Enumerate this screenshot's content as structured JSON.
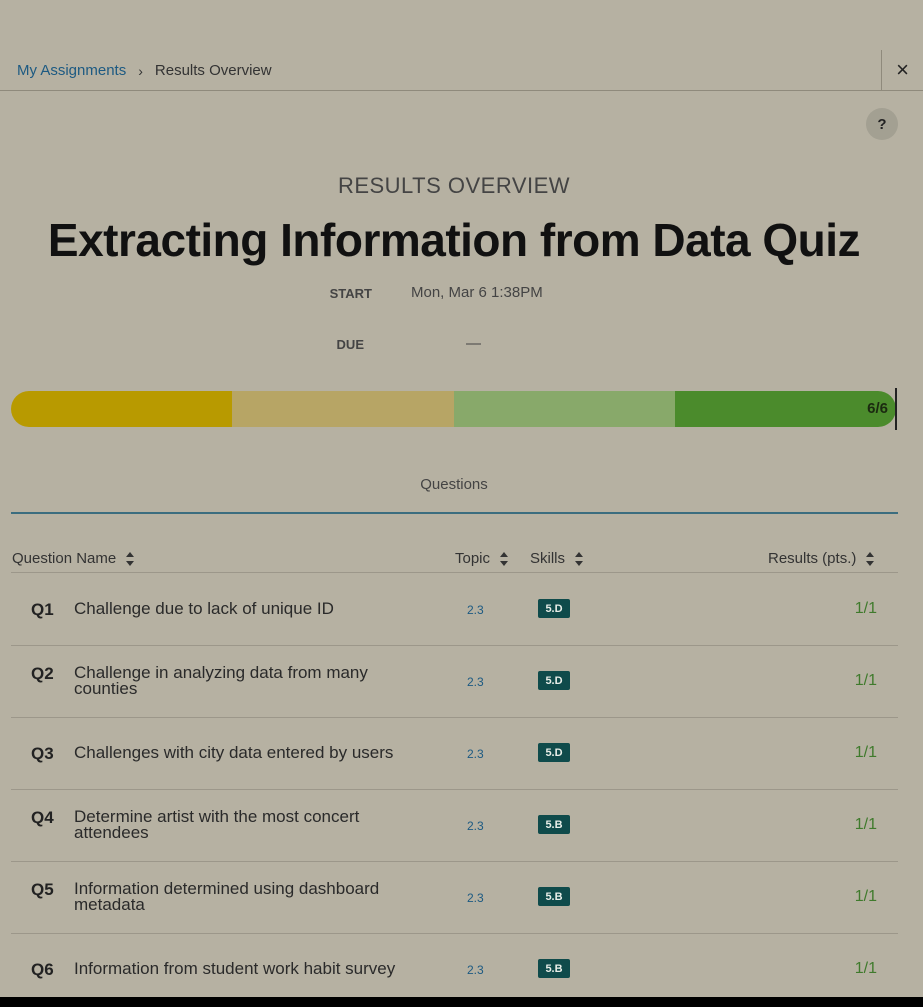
{
  "breadcrumb": {
    "parent": "My Assignments",
    "separator": "›",
    "current": "Results Overview"
  },
  "close_icon": "×",
  "help_label": "?",
  "header": {
    "eyebrow": "RESULTS OVERVIEW",
    "title": "Extracting Information from Data Quiz"
  },
  "meta": {
    "start_label": "START",
    "start_value": "Mon, Mar 6 1:38PM",
    "due_label": "DUE",
    "due_value": "—"
  },
  "progress": {
    "label": "6/6",
    "correct": 6,
    "total": 6,
    "segment_colors": [
      "#b89a00",
      "#b7a565",
      "#88a96a",
      "#4b8b2c"
    ]
  },
  "tabs": {
    "questions": "Questions"
  },
  "table": {
    "headers": {
      "name": "Question Name",
      "topic": "Topic",
      "skills": "Skills",
      "results": "Results (pts.)"
    },
    "rows": [
      {
        "num": "Q1",
        "name": "Challenge due to lack of unique ID",
        "topic": "2.3",
        "skill": "5.D",
        "score": "1/1"
      },
      {
        "num": "Q2",
        "name": "Challenge in analyzing data from many counties",
        "topic": "2.3",
        "skill": "5.D",
        "score": "1/1"
      },
      {
        "num": "Q3",
        "name": "Challenges with city data entered by users",
        "topic": "2.3",
        "skill": "5.D",
        "score": "1/1"
      },
      {
        "num": "Q4",
        "name": "Determine artist with the most concert attendees",
        "topic": "2.3",
        "skill": "5.B",
        "score": "1/1"
      },
      {
        "num": "Q5",
        "name": "Information determined using dashboard metadata",
        "topic": "2.3",
        "skill": "5.B",
        "score": "1/1"
      },
      {
        "num": "Q6",
        "name": "Information from student work habit survey",
        "topic": "2.3",
        "skill": "5.B",
        "score": "1/1"
      }
    ]
  }
}
